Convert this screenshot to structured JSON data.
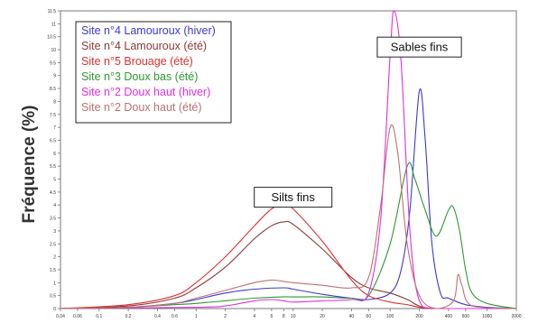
{
  "chart_data": {
    "type": "line",
    "title": "",
    "xlabel": "",
    "ylabel": "Fréquence (%)",
    "xscale": "log",
    "xlim": [
      0.04,
      2000
    ],
    "ylim": [
      0,
      11.5
    ],
    "grid": false,
    "legend_position": "top-left",
    "x_ticks": [
      0.04,
      0.06,
      0.1,
      0.2,
      0.4,
      0.6,
      1,
      2,
      4,
      6,
      8,
      10,
      20,
      40,
      60,
      100,
      200,
      400,
      600,
      1000,
      2000
    ],
    "x_tick_labels": [
      "0.04",
      "0.06",
      "0.1",
      "0.2",
      "0.4",
      "0.6",
      "1",
      "2",
      "4",
      "6",
      "8",
      "10",
      "20",
      "40",
      "60",
      "100",
      "200",
      "400",
      "600",
      "1000",
      "2000"
    ],
    "y_ticks": [
      0,
      0.5,
      1,
      1.5,
      2,
      2.5,
      3,
      3.5,
      4,
      4.5,
      5,
      5.5,
      6,
      6.5,
      7,
      7.5,
      8,
      8.5,
      9,
      9.5,
      10,
      10.5,
      11,
      11.5
    ],
    "y_tick_labels": [
      "0",
      "0.5",
      "1",
      "1.5",
      "2",
      "2.5",
      "3",
      "3.5",
      "4",
      "4.5",
      "5",
      "5.5",
      "6",
      "6.5",
      "7",
      "7.5",
      "8",
      "8.5",
      "9",
      "9.5",
      "10",
      "10.5",
      "11",
      "11.5"
    ],
    "annotations": [
      {
        "text": "Silts fins",
        "x": 10,
        "y": 4.3
      },
      {
        "text": "Sables fins",
        "x": 200,
        "y": 10.1
      }
    ],
    "series": [
      {
        "name": "Site n°4 Lamouroux (hiver)",
        "color": "#3a3ad0",
        "points": [
          [
            0.04,
            0
          ],
          [
            0.2,
            0.05
          ],
          [
            0.6,
            0.2
          ],
          [
            1,
            0.35
          ],
          [
            2,
            0.6
          ],
          [
            4,
            0.75
          ],
          [
            8,
            0.8
          ],
          [
            10,
            0.75
          ],
          [
            20,
            0.55
          ],
          [
            40,
            0.4
          ],
          [
            60,
            0.35
          ],
          [
            100,
            0.6
          ],
          [
            130,
            1.5
          ],
          [
            160,
            3.8
          ],
          [
            200,
            8.4
          ],
          [
            230,
            6.5
          ],
          [
            270,
            2.5
          ],
          [
            330,
            0.6
          ],
          [
            400,
            0.4
          ],
          [
            600,
            0.15
          ],
          [
            1000,
            0.05
          ],
          [
            2000,
            0
          ]
        ]
      },
      {
        "name": "Site n°4 Lamouroux (été)",
        "color": "#8b3a3a",
        "points": [
          [
            0.04,
            0
          ],
          [
            0.2,
            0.1
          ],
          [
            0.6,
            0.4
          ],
          [
            1,
            0.8
          ],
          [
            2,
            1.6
          ],
          [
            4,
            2.7
          ],
          [
            6,
            3.2
          ],
          [
            8,
            3.35
          ],
          [
            10,
            3.25
          ],
          [
            20,
            2.3
          ],
          [
            40,
            1.2
          ],
          [
            60,
            0.8
          ],
          [
            100,
            0.6
          ],
          [
            140,
            0.4
          ],
          [
            160,
            0.3
          ],
          [
            200,
            0.1
          ],
          [
            300,
            0
          ],
          [
            2000,
            0
          ]
        ]
      },
      {
        "name": "Site n°5 Brouage (été)",
        "color": "#e03030",
        "points": [
          [
            0.04,
            0
          ],
          [
            0.2,
            0.15
          ],
          [
            0.6,
            0.5
          ],
          [
            1,
            1.0
          ],
          [
            2,
            2.0
          ],
          [
            4,
            3.2
          ],
          [
            6,
            3.85
          ],
          [
            8,
            4.0
          ],
          [
            10,
            3.85
          ],
          [
            20,
            2.6
          ],
          [
            40,
            1.1
          ],
          [
            60,
            0.5
          ],
          [
            100,
            0.25
          ],
          [
            150,
            0.15
          ],
          [
            200,
            0.05
          ],
          [
            300,
            0
          ],
          [
            2000,
            0
          ]
        ]
      },
      {
        "name": "Site n°3 Doux bas (été)",
        "color": "#2e9a2e",
        "points": [
          [
            0.04,
            0
          ],
          [
            0.2,
            0.05
          ],
          [
            0.6,
            0.15
          ],
          [
            1,
            0.2
          ],
          [
            2,
            0.3
          ],
          [
            4,
            0.4
          ],
          [
            8,
            0.45
          ],
          [
            10,
            0.45
          ],
          [
            20,
            0.45
          ],
          [
            40,
            0.4
          ],
          [
            60,
            0.5
          ],
          [
            100,
            2.5
          ],
          [
            150,
            5.5
          ],
          [
            180,
            5.0
          ],
          [
            230,
            3.8
          ],
          [
            300,
            2.8
          ],
          [
            400,
            3.8
          ],
          [
            450,
            3.9
          ],
          [
            520,
            3.0
          ],
          [
            600,
            1.5
          ],
          [
            700,
            0.6
          ],
          [
            1000,
            0.2
          ],
          [
            2000,
            0
          ]
        ]
      },
      {
        "name": "Site n°2 Doux haut (hiver)",
        "color": "#e030e0",
        "points": [
          [
            0.04,
            0
          ],
          [
            1,
            0.05
          ],
          [
            2,
            0.1
          ],
          [
            4,
            0.3
          ],
          [
            6,
            0.35
          ],
          [
            8,
            0.3
          ],
          [
            10,
            0.25
          ],
          [
            20,
            0.3
          ],
          [
            40,
            0.35
          ],
          [
            60,
            0.6
          ],
          [
            80,
            3.5
          ],
          [
            100,
            9.8
          ],
          [
            110,
            11.5
          ],
          [
            130,
            9.5
          ],
          [
            160,
            3.0
          ],
          [
            200,
            0.3
          ],
          [
            300,
            0
          ],
          [
            2000,
            0
          ]
        ]
      },
      {
        "name": "Site n°2 Doux haut (été)",
        "color": "#c07070",
        "points": [
          [
            0.04,
            0
          ],
          [
            0.2,
            0.05
          ],
          [
            0.6,
            0.2
          ],
          [
            1,
            0.4
          ],
          [
            2,
            0.7
          ],
          [
            4,
            1.0
          ],
          [
            6,
            1.1
          ],
          [
            8,
            1.05
          ],
          [
            10,
            1.0
          ],
          [
            20,
            0.9
          ],
          [
            40,
            0.8
          ],
          [
            60,
            1.2
          ],
          [
            80,
            4.0
          ],
          [
            100,
            7.0
          ],
          [
            120,
            6.0
          ],
          [
            150,
            2.5
          ],
          [
            200,
            0.5
          ],
          [
            300,
            0
          ],
          [
            450,
            0.3
          ],
          [
            500,
            1.3
          ],
          [
            550,
            0.9
          ],
          [
            700,
            0.1
          ],
          [
            2000,
            0
          ]
        ]
      }
    ]
  }
}
